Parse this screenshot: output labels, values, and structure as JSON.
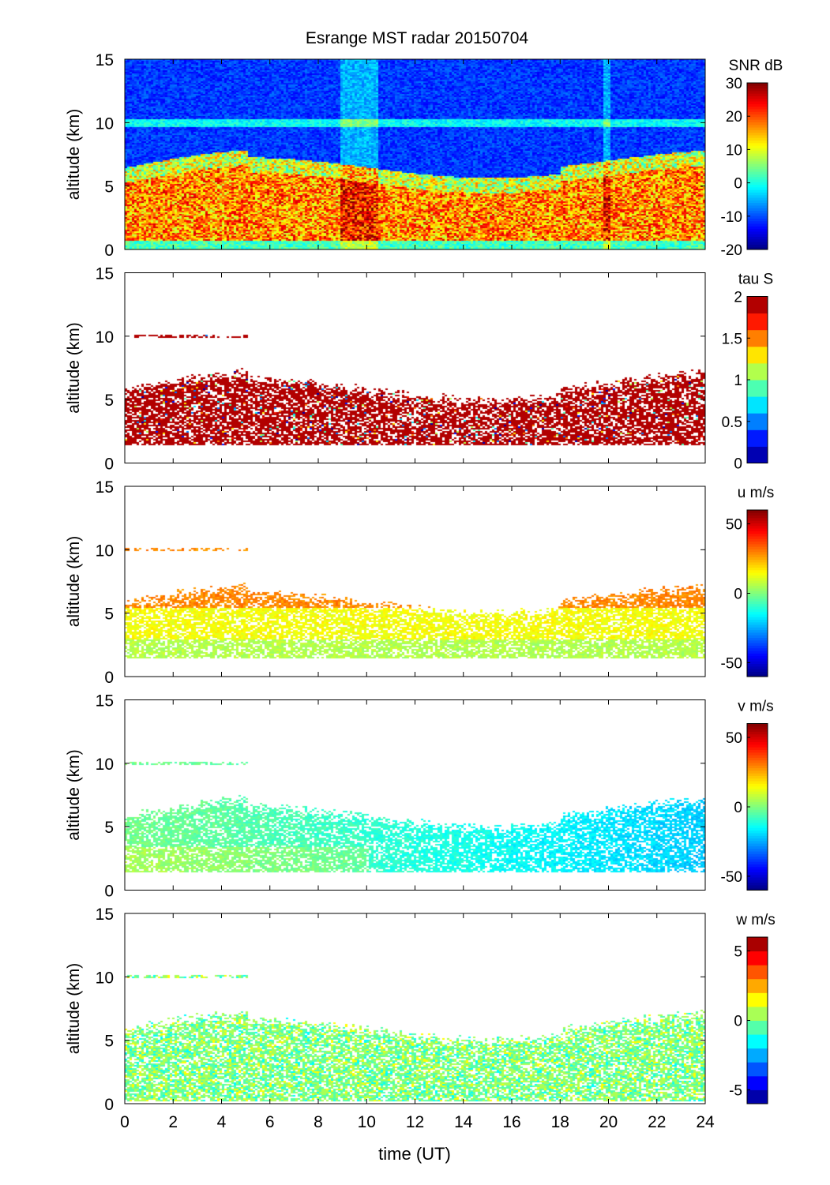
{
  "chart_data": {
    "type": "heatmap",
    "title": "Esrange MST radar 20150704",
    "xlabel": "time (UT)",
    "xlim": [
      0,
      24
    ],
    "xticks": [
      0,
      2,
      4,
      6,
      8,
      10,
      12,
      14,
      16,
      18,
      20,
      22,
      24
    ],
    "ylabel": "altitude (km)",
    "ylim": [
      0,
      15
    ],
    "yticks": [
      0,
      5,
      10,
      15
    ],
    "panels": [
      {
        "name": "snr",
        "colorbar_label": "SNR dB",
        "clim": [
          -20,
          30
        ],
        "cticks": [
          -20,
          -10,
          0,
          10,
          20,
          30
        ],
        "levels": 64,
        "description_values": {
          "echo_layer_km": [
            0.5,
            6.5
          ],
          "tropopause_layer_km": 10,
          "background_db": -15,
          "layer_peak_db": 25
        }
      },
      {
        "name": "tau",
        "colorbar_label": "tau S",
        "clim": [
          0,
          2
        ],
        "cticks": [
          0,
          0.5,
          1,
          1.5,
          2
        ],
        "cticklabels": [
          "0",
          "0.5",
          "1",
          "1.5",
          "2"
        ],
        "levels": 10,
        "description_values": {
          "echo_layer_km": [
            1.5,
            6
          ],
          "typical_value": 2
        }
      },
      {
        "name": "u",
        "colorbar_label": "u m/s",
        "clim": [
          -60,
          60
        ],
        "cticks": [
          -50,
          0,
          50
        ],
        "levels": 64,
        "description_values": {
          "echo_layer_km": [
            1.5,
            6
          ],
          "typical_value": 12
        }
      },
      {
        "name": "v",
        "colorbar_label": "v m/s",
        "clim": [
          -60,
          60
        ],
        "cticks": [
          -50,
          0,
          50
        ],
        "levels": 64,
        "description_values": {
          "echo_layer_km": [
            1.5,
            6
          ],
          "typical_value_start": -5,
          "typical_value_end": -25
        }
      },
      {
        "name": "w",
        "colorbar_label": "w m/s",
        "clim": [
          -6,
          6
        ],
        "cticks": [
          -5,
          0,
          5
        ],
        "levels": 12,
        "description_values": {
          "echo_layer_km": [
            0.3,
            6
          ],
          "typical_value": 0
        }
      }
    ],
    "grid": false
  }
}
